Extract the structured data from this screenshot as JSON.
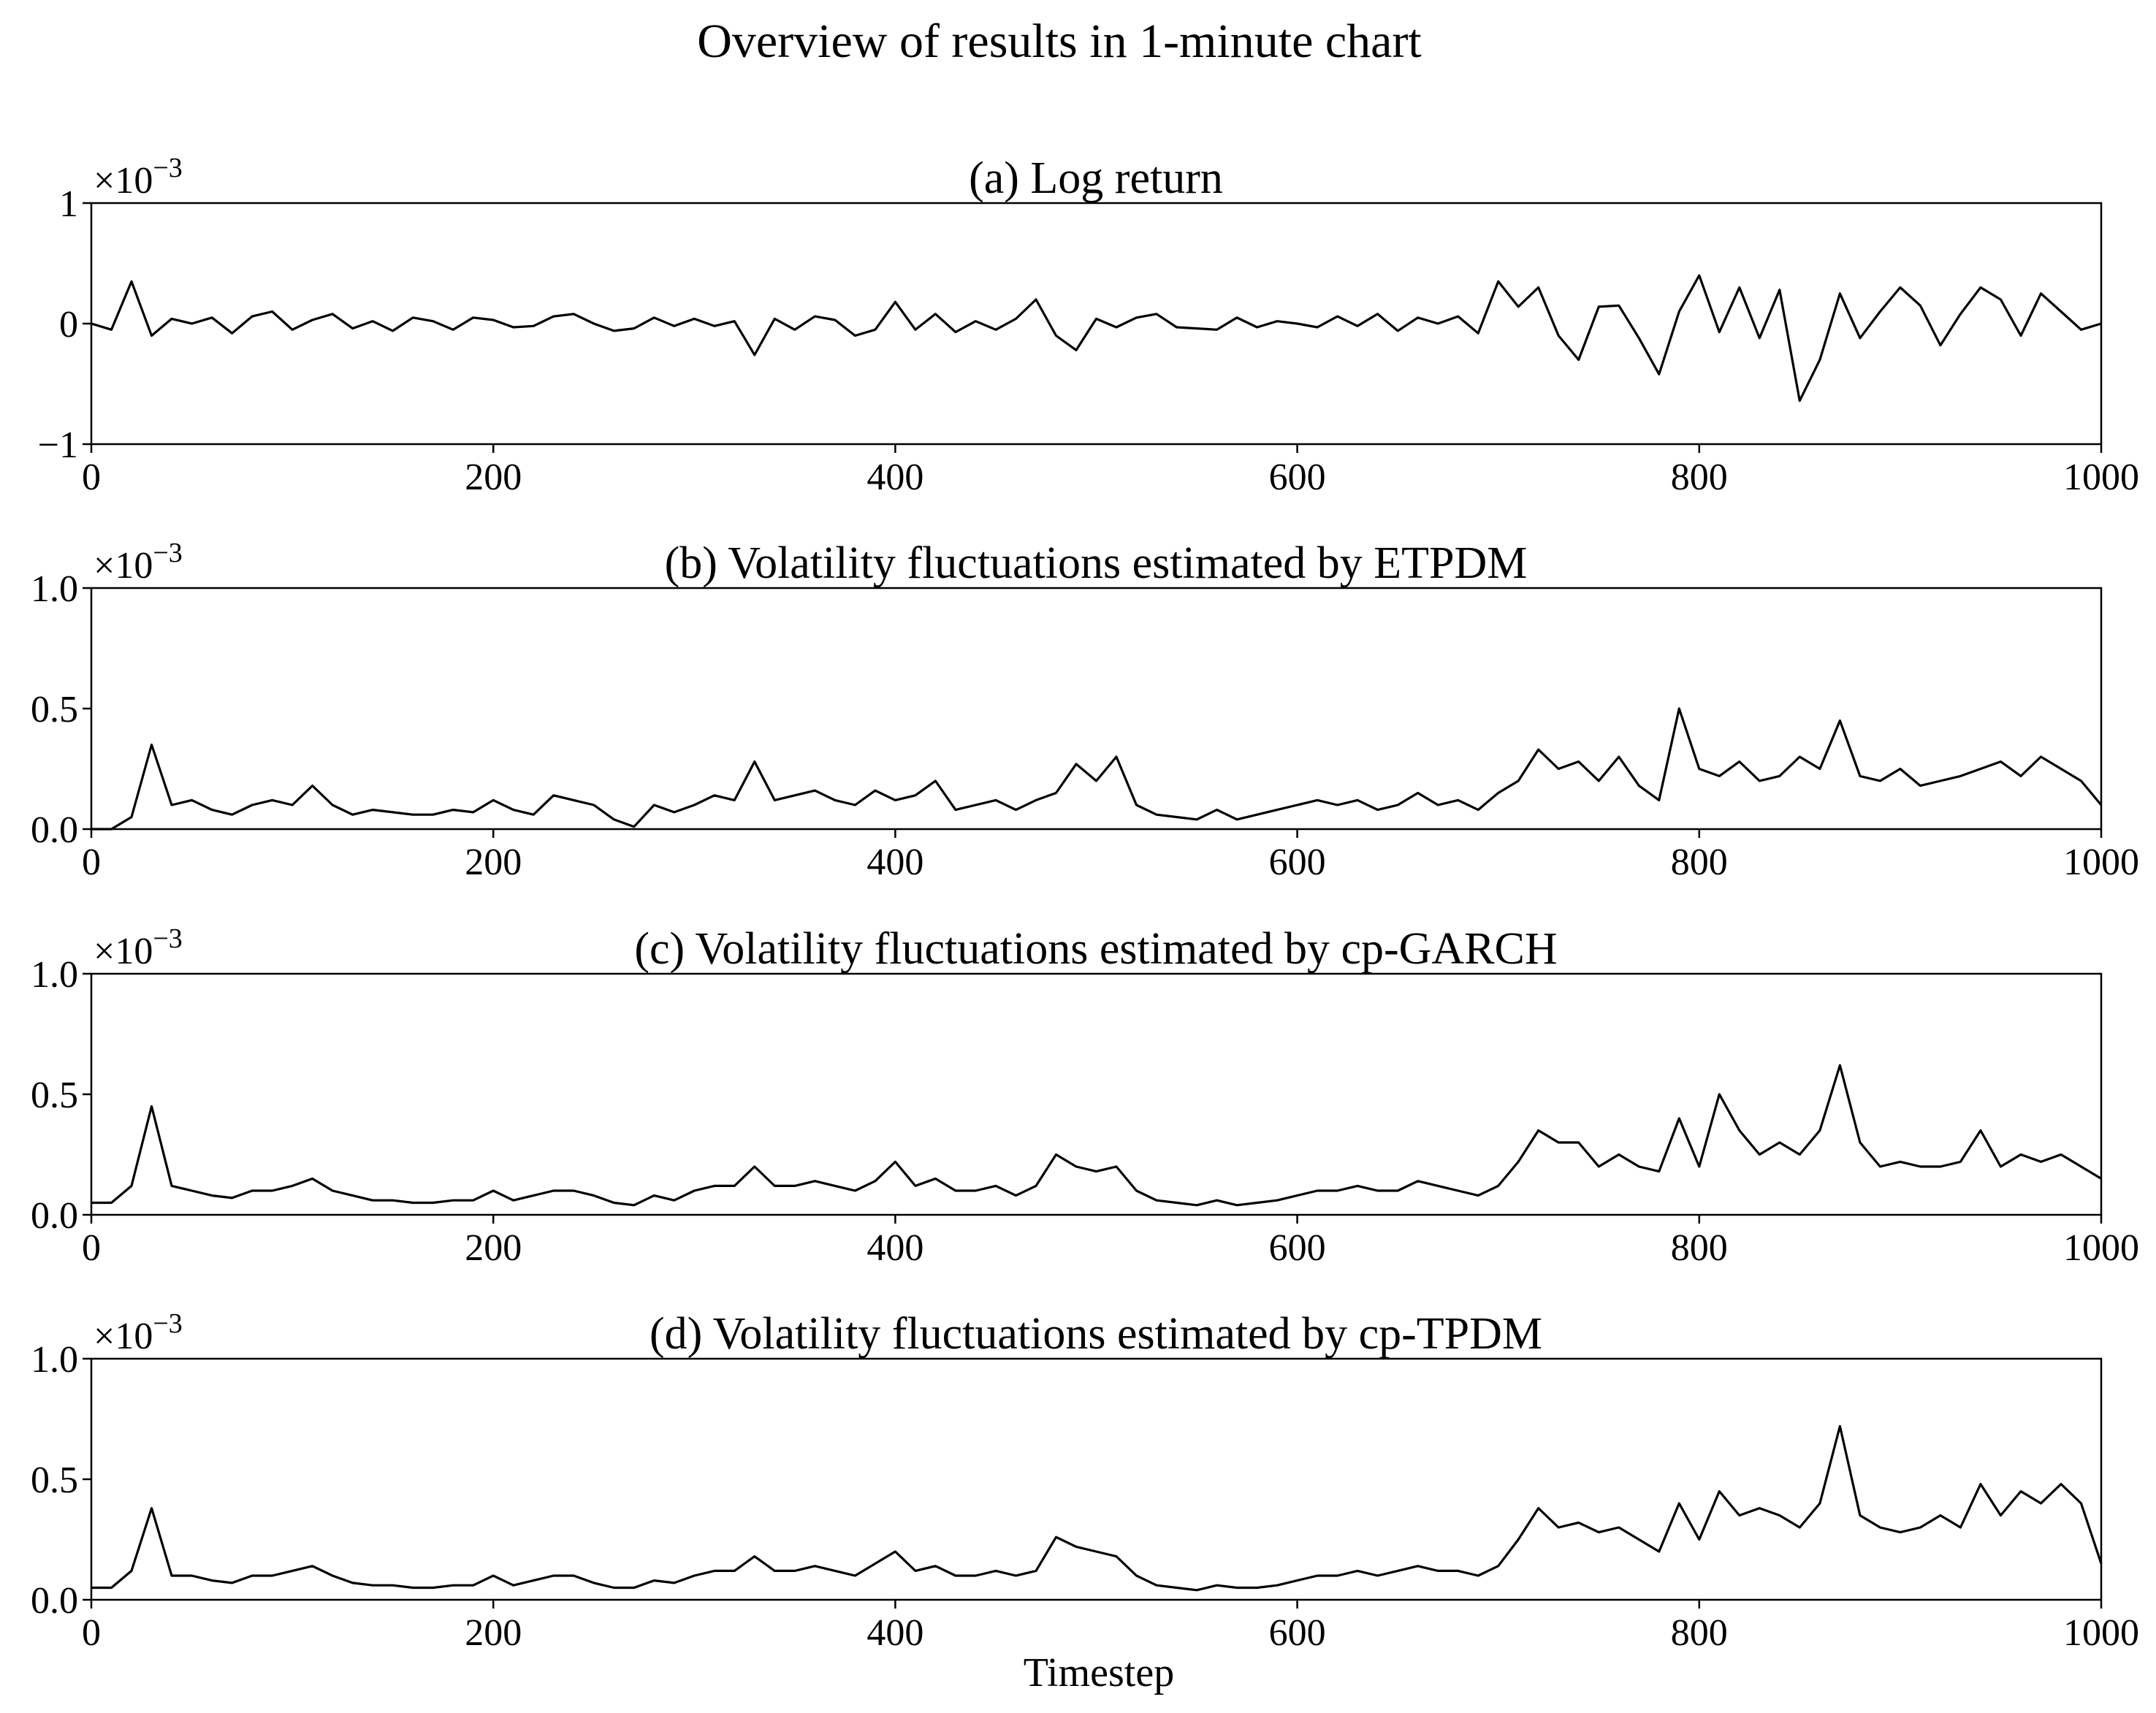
{
  "figure": {
    "title": "Overview of results in 1-minute chart",
    "xlabel": "Timestep",
    "scale_base": "×10",
    "scale_exp": "−3"
  },
  "chart_data": [
    {
      "type": "line",
      "title": "(a) Log return",
      "xlim": [
        0,
        1000
      ],
      "ylim": [
        -1,
        1
      ],
      "x_ticks": [
        "0",
        "200",
        "400",
        "600",
        "800",
        "1000"
      ],
      "y_ticks": [
        "−1",
        "0",
        "1"
      ],
      "y_tick_values": [
        -1,
        0,
        1
      ],
      "multiplier": "1e-3",
      "color": "#000000",
      "series": [
        {
          "x_step": 10,
          "x_start": 0,
          "y": [
            0.0,
            -0.05,
            0.35,
            -0.1,
            0.04,
            0.0,
            0.05,
            -0.08,
            0.06,
            0.1,
            -0.05,
            0.03,
            0.08,
            -0.04,
            0.02,
            -0.06,
            0.05,
            0.02,
            -0.05,
            0.05,
            0.03,
            -0.03,
            -0.02,
            0.06,
            0.08,
            0.0,
            -0.06,
            -0.04,
            0.05,
            -0.02,
            0.04,
            -0.02,
            0.02,
            -0.26,
            0.04,
            -0.05,
            0.06,
            0.03,
            -0.1,
            -0.05,
            0.18,
            -0.05,
            0.08,
            -0.07,
            0.02,
            -0.05,
            0.04,
            0.2,
            -0.1,
            -0.22,
            0.04,
            -0.03,
            0.05,
            0.08,
            -0.03,
            -0.04,
            -0.05,
            0.05,
            -0.03,
            0.02,
            0.0,
            -0.03,
            0.06,
            -0.02,
            0.08,
            -0.06,
            0.05,
            0.0,
            0.06,
            -0.08,
            0.35,
            0.14,
            0.3,
            -0.1,
            -0.3,
            0.14,
            0.15,
            -0.12,
            -0.42,
            0.1,
            0.4,
            -0.07,
            0.3,
            -0.12,
            0.28,
            -0.64,
            -0.3,
            0.25,
            -0.12,
            0.1,
            0.3,
            0.15,
            -0.18,
            0.08,
            0.3,
            0.2,
            -0.1,
            0.25,
            0.1,
            -0.05,
            0.0
          ]
        }
      ]
    },
    {
      "type": "line",
      "title": "(b) Volatility fluctuations estimated by ETPDM",
      "xlim": [
        0,
        1000
      ],
      "ylim": [
        0,
        1
      ],
      "x_ticks": [
        "0",
        "200",
        "400",
        "600",
        "800",
        "1000"
      ],
      "y_ticks": [
        "0.0",
        "0.5",
        "1.0"
      ],
      "y_tick_values": [
        0,
        0.5,
        1
      ],
      "multiplier": "1e-3",
      "color": "#000000",
      "series": [
        {
          "x_step": 10,
          "x_start": 0,
          "y": [
            0.0,
            0.0,
            0.05,
            0.35,
            0.1,
            0.12,
            0.08,
            0.06,
            0.1,
            0.12,
            0.1,
            0.18,
            0.1,
            0.06,
            0.08,
            0.07,
            0.06,
            0.06,
            0.08,
            0.07,
            0.12,
            0.08,
            0.06,
            0.14,
            0.12,
            0.1,
            0.04,
            0.01,
            0.1,
            0.07,
            0.1,
            0.14,
            0.12,
            0.28,
            0.12,
            0.14,
            0.16,
            0.12,
            0.1,
            0.16,
            0.12,
            0.14,
            0.2,
            0.08,
            0.1,
            0.12,
            0.08,
            0.12,
            0.15,
            0.27,
            0.2,
            0.3,
            0.1,
            0.06,
            0.05,
            0.04,
            0.08,
            0.04,
            0.06,
            0.08,
            0.1,
            0.12,
            0.1,
            0.12,
            0.08,
            0.1,
            0.15,
            0.1,
            0.12,
            0.08,
            0.15,
            0.2,
            0.33,
            0.25,
            0.28,
            0.2,
            0.3,
            0.18,
            0.12,
            0.5,
            0.25,
            0.22,
            0.28,
            0.2,
            0.22,
            0.3,
            0.25,
            0.45,
            0.22,
            0.2,
            0.25,
            0.18,
            0.2,
            0.22,
            0.25,
            0.28,
            0.22,
            0.3,
            0.25,
            0.2,
            0.1
          ]
        }
      ]
    },
    {
      "type": "line",
      "title": "(c) Volatility fluctuations estimated by cp-GARCH",
      "xlim": [
        0,
        1000
      ],
      "ylim": [
        0,
        1
      ],
      "x_ticks": [
        "0",
        "200",
        "400",
        "600",
        "800",
        "1000"
      ],
      "y_ticks": [
        "0.0",
        "0.5",
        "1.0"
      ],
      "y_tick_values": [
        0,
        0.5,
        1
      ],
      "multiplier": "1e-3",
      "color": "#000000",
      "series": [
        {
          "x_step": 10,
          "x_start": 0,
          "y": [
            0.05,
            0.05,
            0.12,
            0.45,
            0.12,
            0.1,
            0.08,
            0.07,
            0.1,
            0.1,
            0.12,
            0.15,
            0.1,
            0.08,
            0.06,
            0.06,
            0.05,
            0.05,
            0.06,
            0.06,
            0.1,
            0.06,
            0.08,
            0.1,
            0.1,
            0.08,
            0.05,
            0.04,
            0.08,
            0.06,
            0.1,
            0.12,
            0.12,
            0.2,
            0.12,
            0.12,
            0.14,
            0.12,
            0.1,
            0.14,
            0.22,
            0.12,
            0.15,
            0.1,
            0.1,
            0.12,
            0.08,
            0.12,
            0.25,
            0.2,
            0.18,
            0.2,
            0.1,
            0.06,
            0.05,
            0.04,
            0.06,
            0.04,
            0.05,
            0.06,
            0.08,
            0.1,
            0.1,
            0.12,
            0.1,
            0.1,
            0.14,
            0.12,
            0.1,
            0.08,
            0.12,
            0.22,
            0.35,
            0.3,
            0.3,
            0.2,
            0.25,
            0.2,
            0.18,
            0.4,
            0.2,
            0.5,
            0.35,
            0.25,
            0.3,
            0.25,
            0.35,
            0.62,
            0.3,
            0.2,
            0.22,
            0.2,
            0.2,
            0.22,
            0.35,
            0.2,
            0.25,
            0.22,
            0.25,
            0.2,
            0.15
          ]
        }
      ]
    },
    {
      "type": "line",
      "title": "(d) Volatility fluctuations estimated by cp-TPDM",
      "xlim": [
        0,
        1000
      ],
      "ylim": [
        0,
        1
      ],
      "x_ticks": [
        "0",
        "200",
        "400",
        "600",
        "800",
        "1000"
      ],
      "y_ticks": [
        "0.0",
        "0.5",
        "1.0"
      ],
      "y_tick_values": [
        0,
        0.5,
        1
      ],
      "multiplier": "1e-3",
      "color": "#000000",
      "series": [
        {
          "x_step": 10,
          "x_start": 0,
          "y": [
            0.05,
            0.05,
            0.12,
            0.38,
            0.1,
            0.1,
            0.08,
            0.07,
            0.1,
            0.1,
            0.12,
            0.14,
            0.1,
            0.07,
            0.06,
            0.06,
            0.05,
            0.05,
            0.06,
            0.06,
            0.1,
            0.06,
            0.08,
            0.1,
            0.1,
            0.07,
            0.05,
            0.05,
            0.08,
            0.07,
            0.1,
            0.12,
            0.12,
            0.18,
            0.12,
            0.12,
            0.14,
            0.12,
            0.1,
            0.15,
            0.2,
            0.12,
            0.14,
            0.1,
            0.1,
            0.12,
            0.1,
            0.12,
            0.26,
            0.22,
            0.2,
            0.18,
            0.1,
            0.06,
            0.05,
            0.04,
            0.06,
            0.05,
            0.05,
            0.06,
            0.08,
            0.1,
            0.1,
            0.12,
            0.1,
            0.12,
            0.14,
            0.12,
            0.12,
            0.1,
            0.14,
            0.25,
            0.38,
            0.3,
            0.32,
            0.28,
            0.3,
            0.25,
            0.2,
            0.4,
            0.25,
            0.45,
            0.35,
            0.38,
            0.35,
            0.3,
            0.4,
            0.72,
            0.35,
            0.3,
            0.28,
            0.3,
            0.35,
            0.3,
            0.48,
            0.35,
            0.45,
            0.4,
            0.48,
            0.4,
            0.15
          ]
        }
      ]
    }
  ]
}
